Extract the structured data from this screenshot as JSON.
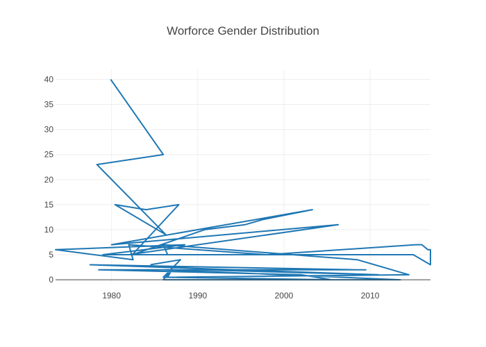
{
  "chart_data": {
    "type": "line",
    "title": "Worforce Gender Distribution",
    "xlabel": "",
    "ylabel": "",
    "xlim": [
      1973.5,
      2017
    ],
    "ylim": [
      -0.4,
      42
    ],
    "x_ticks": [
      1980,
      1990,
      2000,
      2010
    ],
    "y_ticks": [
      0,
      5,
      10,
      15,
      20,
      25,
      30,
      35,
      40
    ],
    "grid": true,
    "line_color": "#1f77b4",
    "series": [
      {
        "x": [
          1979.9,
          1986.0,
          1978.3,
          1986.3,
          1980.4,
          1984.0,
          1987.8,
          1982.4,
          1990.8,
          1995.5,
          1997.5,
          2003.3,
          1980.0,
          2006.3,
          1982.0,
          2006.5,
          1979.0,
          1988.5,
          1973.5,
          1982.5,
          1982.0,
          1998.0,
          2015.3,
          2016.0,
          2016.7,
          2017.0,
          2017.0,
          2015.0,
          1986.5,
          1986.0,
          2008.5,
          2014.5,
          1986.5,
          1987.0,
          1986.0,
          2013.5,
          1986.0,
          1990.0,
          2011.0,
          1977.5,
          2008.5,
          2009.5,
          1978.5,
          2002.0,
          2005.5,
          1986.0,
          1988.0,
          1984.5
        ],
        "y": [
          40,
          25,
          23,
          9,
          15,
          14,
          15,
          5,
          10,
          11,
          12,
          14,
          7,
          11,
          5,
          5,
          5,
          7,
          6,
          4,
          7,
          5,
          7,
          7,
          6,
          6,
          3,
          5,
          5,
          7,
          4,
          1,
          0.5,
          2,
          0,
          0,
          2,
          2,
          1,
          3,
          2,
          2,
          2,
          1,
          0,
          0.5,
          4,
          3
        ]
      }
    ]
  }
}
